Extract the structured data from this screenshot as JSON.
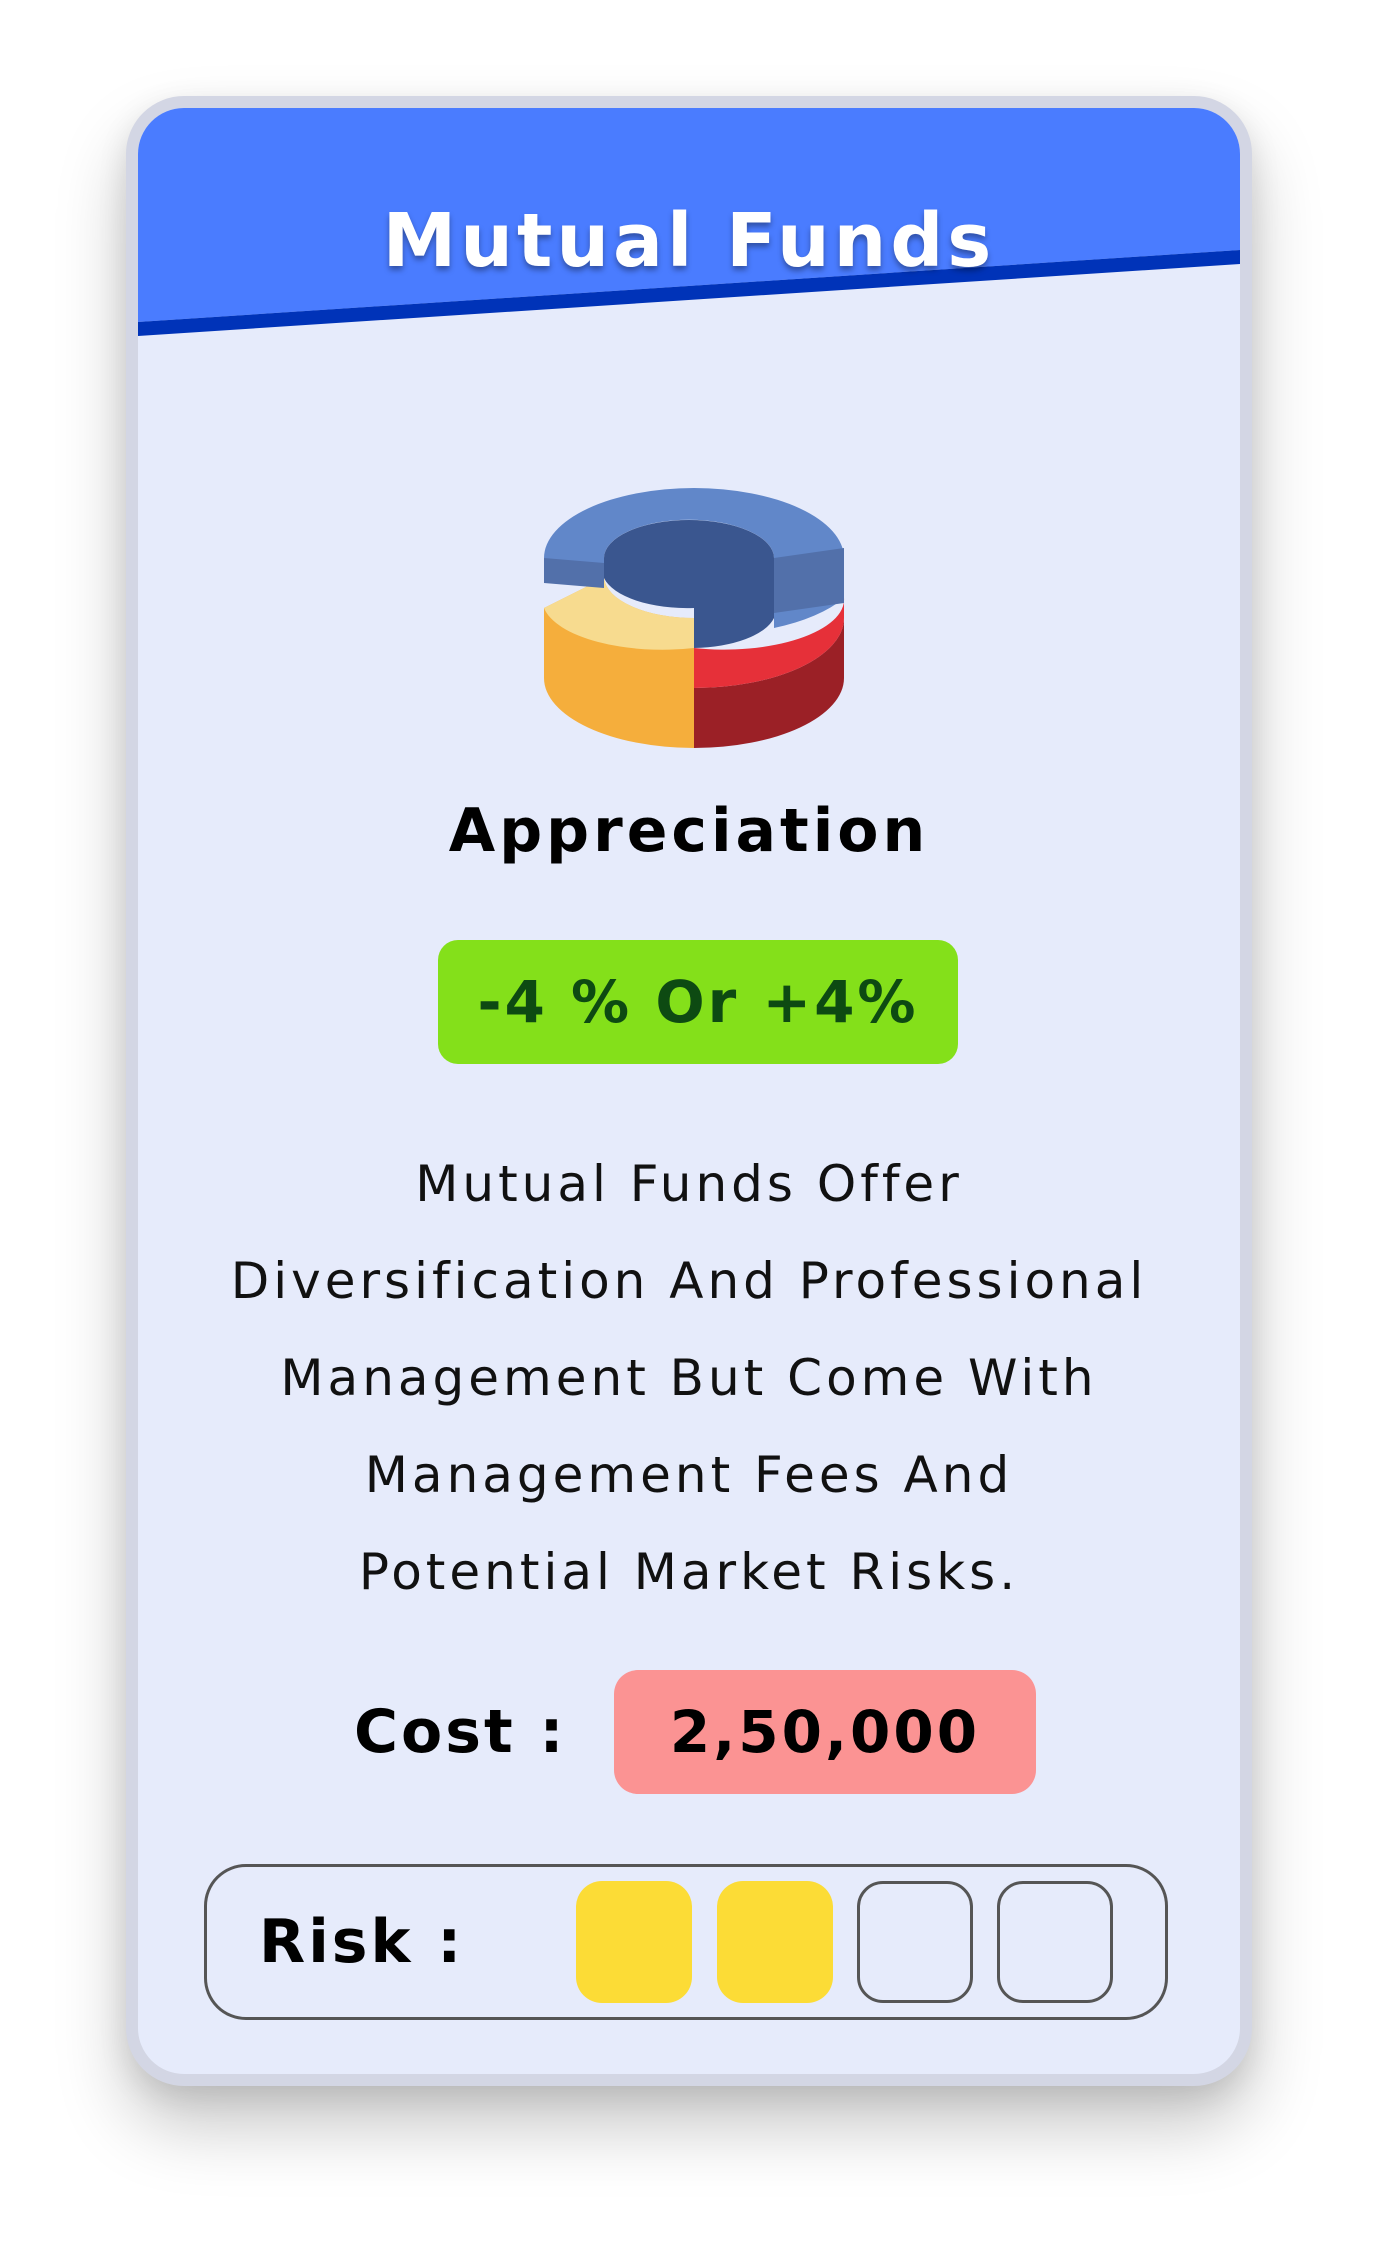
{
  "card": {
    "title": "Mutual Funds",
    "icon": "pie-chart-3d-icon",
    "subtitle": "Appreciation",
    "appreciation_badge": "-4 % Or +4%",
    "description_lines": [
      "Mutual Funds Offer",
      "Diversification And Professional",
      "Management But Come With",
      "Management Fees And",
      "Potential Market Risks."
    ],
    "cost": {
      "label": "Cost :",
      "value": "2,50,000"
    },
    "risk": {
      "label": "Risk :",
      "level": 2,
      "max": 4
    }
  },
  "colors": {
    "header_blue": "#4a7cff",
    "header_stripe": "#0033b8",
    "card_bg": "#e6ebfb",
    "appreciation_green": "#84e01a",
    "appreciation_text": "#0d4a12",
    "cost_pink": "#fb9393",
    "risk_yellow": "#fcdc36"
  }
}
